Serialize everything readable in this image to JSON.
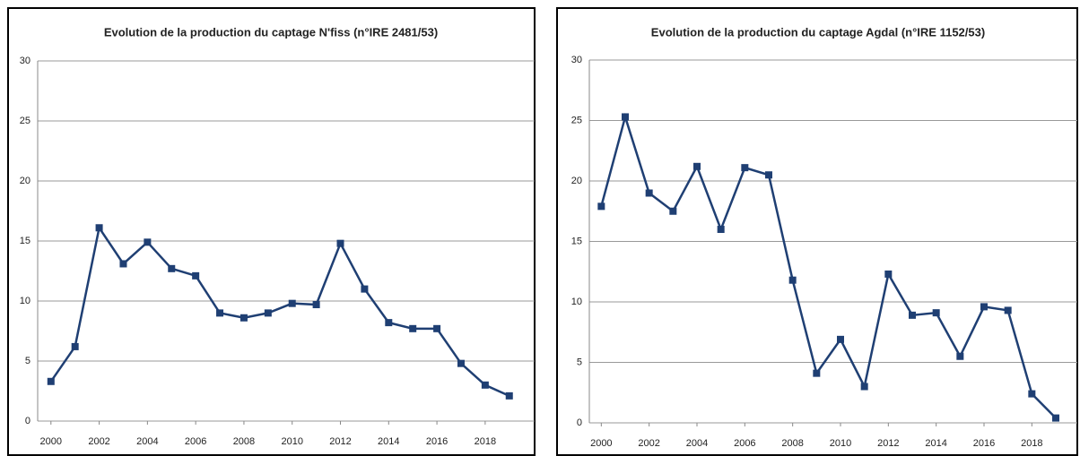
{
  "chart_data": [
    {
      "type": "line",
      "title": "Evolution de la production du captage N'fiss  (n°IRE 2481/53)",
      "x": [
        2000,
        2001,
        2002,
        2003,
        2004,
        2005,
        2006,
        2007,
        2008,
        2009,
        2010,
        2011,
        2012,
        2013,
        2014,
        2015,
        2016,
        2017,
        2018,
        2019
      ],
      "values": [
        3.3,
        6.2,
        16.1,
        13.1,
        14.9,
        12.7,
        12.1,
        9.0,
        8.6,
        9.0,
        9.8,
        9.7,
        14.8,
        11.0,
        8.2,
        7.7,
        7.7,
        4.8,
        3.0,
        2.1
      ],
      "color": "#1f3f73",
      "xlim": [
        1999.45,
        2020.05
      ],
      "xticks": [
        2000,
        2002,
        2004,
        2006,
        2008,
        2010,
        2012,
        2014,
        2016,
        2018
      ],
      "ylim": [
        0,
        30
      ],
      "yticks": [
        0,
        5,
        10,
        15,
        20,
        25,
        30
      ],
      "grid": true
    },
    {
      "type": "line",
      "title": "Evolution de la production du captage Agdal (n°IRE 1152/53)",
      "x": [
        2000,
        2001,
        2002,
        2003,
        2004,
        2005,
        2006,
        2007,
        2008,
        2009,
        2010,
        2011,
        2012,
        2013,
        2014,
        2015,
        2016,
        2017,
        2018,
        2019
      ],
      "values": [
        17.9,
        25.3,
        19.0,
        17.5,
        21.2,
        16.0,
        21.1,
        20.5,
        11.8,
        4.1,
        6.9,
        3.0,
        12.3,
        8.9,
        9.1,
        5.5,
        9.6,
        9.3,
        2.4,
        0.4
      ],
      "color": "#1f3f73",
      "xlim": [
        1999.5,
        2019.9
      ],
      "xticks": [
        2000,
        2002,
        2004,
        2006,
        2008,
        2010,
        2012,
        2014,
        2016,
        2018
      ],
      "ylim": [
        0,
        30
      ],
      "yticks": [
        0,
        5,
        10,
        15,
        20,
        25,
        30
      ],
      "grid": true
    }
  ]
}
